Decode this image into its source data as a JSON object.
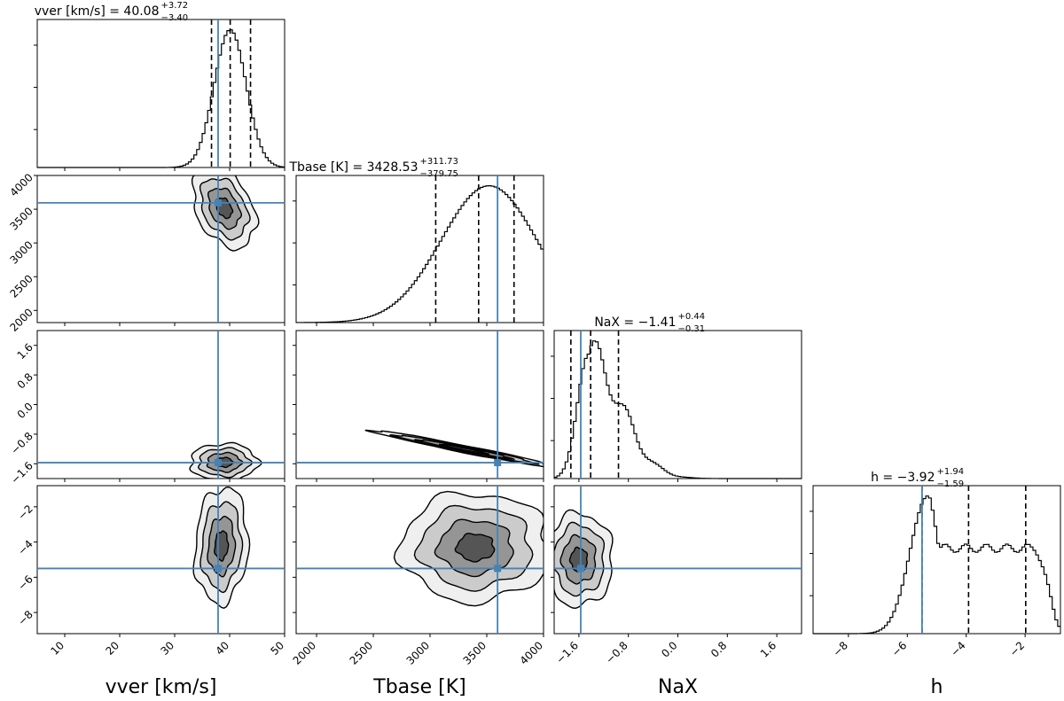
{
  "chart_data": {
    "type": "corner",
    "truth_color": "#4682b4",
    "parameters": [
      {
        "id": "vver",
        "label": "vver [km/s]",
        "title": {
          "name": "vver [km/s]",
          "median": "40.08",
          "plus": "+3.72",
          "minus": "−3.40"
        },
        "range": [
          5,
          50
        ],
        "ticks": [
          10,
          20,
          30,
          40,
          50
        ],
        "tick_labels": [
          "10",
          "20",
          "30",
          "40",
          "50"
        ],
        "truth": 37.9,
        "quantiles": [
          36.7,
          40.1,
          43.8
        ],
        "hist": {
          "type": "gauss",
          "center": 40.1,
          "width": 2.9
        }
      },
      {
        "id": "tbase",
        "label": "Tbase [K]",
        "title": {
          "name": "Tbase [K]",
          "median": "3428.53",
          "plus": "+311.73",
          "minus": "−379.75"
        },
        "range": [
          1820,
          4000
        ],
        "ticks": [
          2000,
          2500,
          3000,
          3500,
          4000
        ],
        "tick_labels": [
          "2000",
          "2500",
          "3000",
          "3500",
          "4000"
        ],
        "truth": 3595,
        "quantiles": [
          3050,
          3428,
          3740
        ],
        "hist": {
          "type": "gauss",
          "center": 3520,
          "width": 420
        }
      },
      {
        "id": "nax",
        "label": "NaX",
        "title": {
          "name": "NaX",
          "median": "−1.41",
          "plus": "+0.44",
          "minus": "−0.31"
        },
        "range": [
          -2.0,
          2.0
        ],
        "ticks": [
          -1.6,
          -0.8,
          0.0,
          0.8,
          1.6
        ],
        "tick_labels": [
          "−1.6",
          "−0.8",
          "0.0",
          "0.8",
          "1.6"
        ],
        "truth": -1.57,
        "quantiles": [
          -1.73,
          -1.41,
          -0.96
        ],
        "hist": {
          "type": "skew",
          "center": -1.45,
          "width": 0.25
        }
      },
      {
        "id": "h",
        "label": "h",
        "title": {
          "name": "h",
          "median": "−3.92",
          "plus": "+1.94",
          "minus": "−1.59"
        },
        "range": [
          -9.2,
          -0.8
        ],
        "ticks": [
          -8,
          -6,
          -4,
          -2
        ],
        "tick_labels": [
          "−8",
          "−6",
          "−4",
          "−2"
        ],
        "truth": -5.5,
        "quantiles": [
          -5.5,
          -3.92,
          -1.98
        ],
        "hist": {
          "type": "plateau",
          "center": -5.3,
          "width": 0.6
        }
      }
    ],
    "pairs": [
      {
        "row": 1,
        "col": 0,
        "center": [
          39.0,
          3520
        ],
        "spread": [
          2.6,
          270
        ],
        "corr": -0.35
      },
      {
        "row": 2,
        "col": 0,
        "center": [
          39.0,
          -1.56
        ],
        "spread": [
          2.8,
          0.23
        ],
        "corr": 0.0
      },
      {
        "row": 2,
        "col": 1,
        "center": [
          3300,
          -1.2
        ],
        "spread": [
          370,
          0.23
        ],
        "corr": -0.98
      },
      {
        "row": 3,
        "col": 0,
        "center": [
          38.5,
          -4.2
        ],
        "spread": [
          2.2,
          1.5
        ],
        "corr": 0.1
      },
      {
        "row": 3,
        "col": 1,
        "center": [
          3400,
          -4.3
        ],
        "spread": [
          300,
          1.4
        ],
        "corr": 0.0
      },
      {
        "row": 3,
        "col": 2,
        "center": [
          -1.6,
          -5.0
        ],
        "spread": [
          0.25,
          1.2
        ],
        "corr": 0.0
      }
    ]
  }
}
